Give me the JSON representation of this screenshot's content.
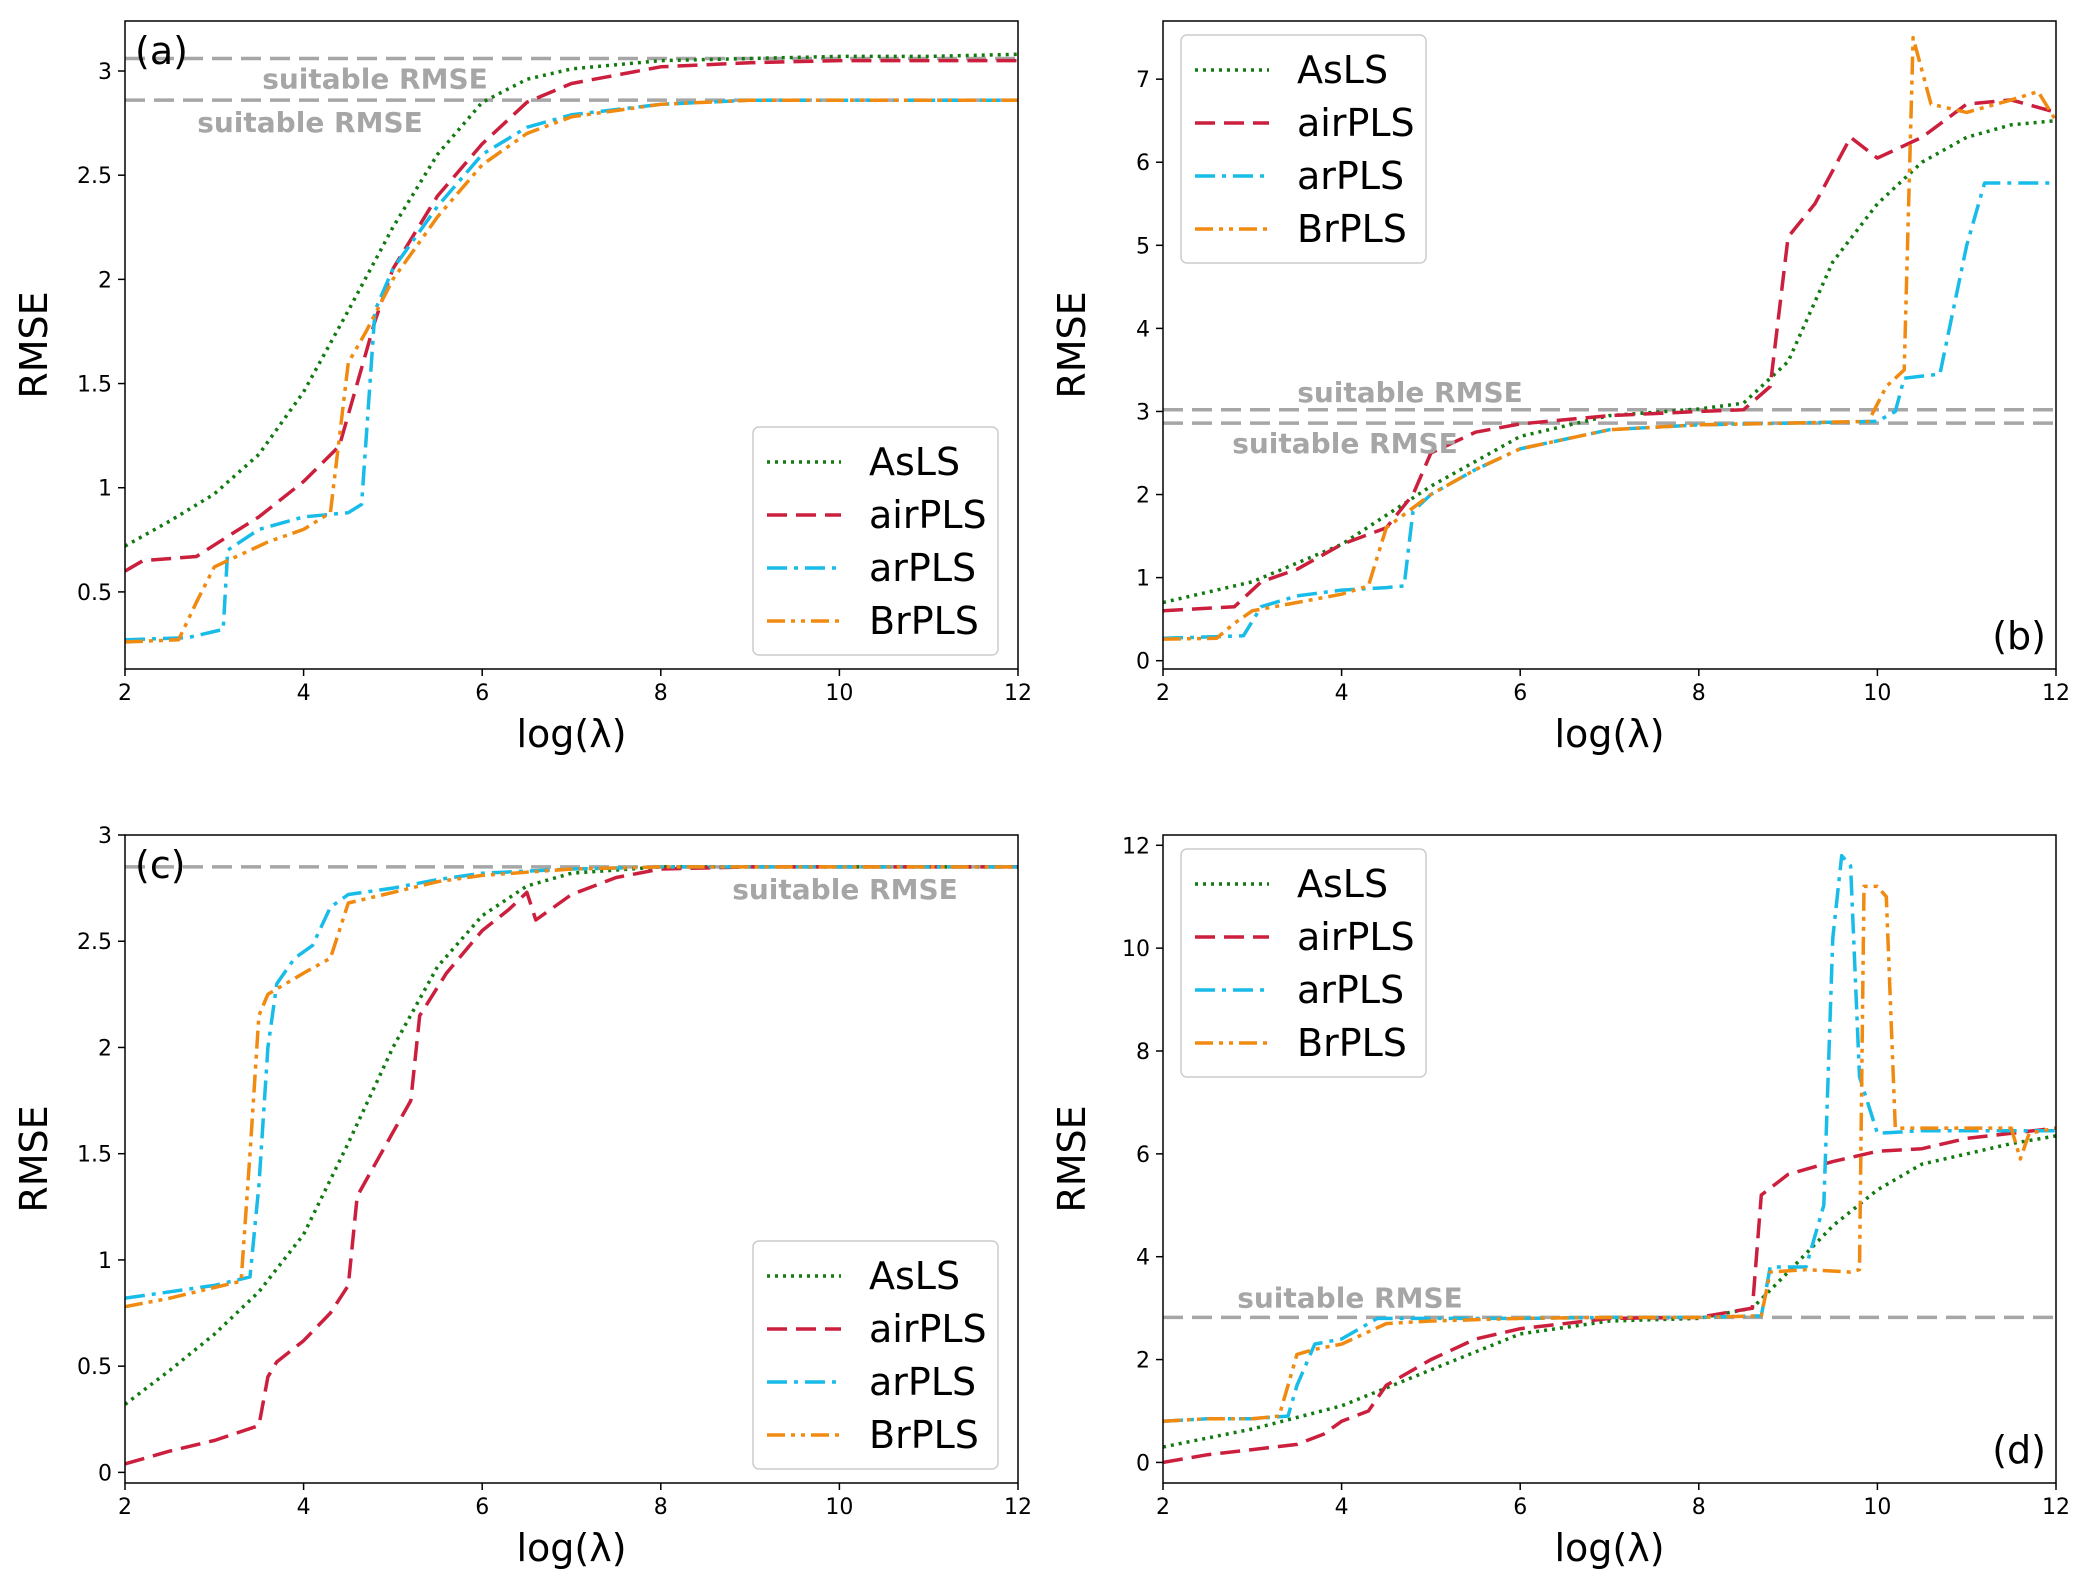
{
  "figure": {
    "layout": "2x2 grid"
  },
  "chart_data": [
    {
      "panel": "(a)",
      "type": "line",
      "xlabel": "log(λ)",
      "ylabel": "RMSE",
      "xlim": [
        2,
        12
      ],
      "ylim": [
        0.13,
        3.24
      ],
      "xticks": [
        2,
        4,
        6,
        8,
        10,
        12
      ],
      "yticks": [
        0.5,
        1.0,
        1.5,
        2.0,
        2.5,
        3.0
      ],
      "legend": {
        "placement": "lower-right"
      },
      "panel_label_placement": "top-left",
      "reference_lines": [
        {
          "label": "suitable RMSE",
          "y": 3.06
        },
        {
          "label": "suitable RMSE",
          "y": 2.86
        }
      ],
      "series": [
        {
          "name": "AsLS",
          "x": [
            2,
            2.5,
            3,
            3.5,
            4,
            4.5,
            5,
            5.5,
            6,
            6.5,
            7,
            8,
            9,
            10,
            11,
            12
          ],
          "values": [
            0.72,
            0.84,
            0.97,
            1.16,
            1.46,
            1.85,
            2.25,
            2.6,
            2.85,
            2.96,
            3.01,
            3.05,
            3.06,
            3.07,
            3.07,
            3.08
          ]
        },
        {
          "name": "airPLS",
          "x": [
            2,
            2.2,
            2.8,
            3.2,
            3.5,
            4,
            4.4,
            4.6,
            4.8,
            5,
            5.5,
            6,
            6.5,
            7,
            8,
            9,
            10,
            11,
            12
          ],
          "values": [
            0.6,
            0.65,
            0.67,
            0.78,
            0.86,
            1.03,
            1.2,
            1.5,
            1.8,
            2.05,
            2.4,
            2.65,
            2.85,
            2.94,
            3.02,
            3.04,
            3.05,
            3.05,
            3.05
          ]
        },
        {
          "name": "arPLS",
          "x": [
            2,
            2.7,
            3.1,
            3.15,
            3.5,
            4,
            4.5,
            4.65,
            4.8,
            5,
            5.5,
            6,
            6.5,
            7,
            8,
            9,
            10,
            11,
            12
          ],
          "values": [
            0.27,
            0.28,
            0.32,
            0.7,
            0.8,
            0.86,
            0.88,
            0.92,
            1.85,
            2.05,
            2.35,
            2.6,
            2.73,
            2.79,
            2.84,
            2.86,
            2.86,
            2.86,
            2.86
          ]
        },
        {
          "name": "BrPLS",
          "x": [
            2,
            2.6,
            2.8,
            3.0,
            3.3,
            3.6,
            4,
            4.3,
            4.5,
            4.7,
            5,
            5.5,
            6,
            6.5,
            7,
            8,
            9,
            10,
            11,
            12
          ],
          "values": [
            0.26,
            0.27,
            0.45,
            0.62,
            0.68,
            0.74,
            0.8,
            0.88,
            1.6,
            1.75,
            2.0,
            2.3,
            2.55,
            2.7,
            2.78,
            2.84,
            2.86,
            2.86,
            2.86,
            2.86
          ]
        }
      ]
    },
    {
      "panel": "(b)",
      "type": "line",
      "xlabel": "log(λ)",
      "ylabel": "RMSE",
      "xlim": [
        2,
        12
      ],
      "ylim": [
        -0.1,
        7.7
      ],
      "xticks": [
        2,
        4,
        6,
        8,
        10,
        12
      ],
      "yticks": [
        0,
        1,
        2,
        3,
        4,
        5,
        6,
        7
      ],
      "legend": {
        "placement": "top-left"
      },
      "panel_label_placement": "bottom-right",
      "reference_lines": [
        {
          "label": "suitable RMSE",
          "y": 3.02
        },
        {
          "label": "suitable RMSE",
          "y": 2.86
        }
      ],
      "series": [
        {
          "name": "AsLS",
          "x": [
            2,
            3,
            4,
            5,
            6,
            7,
            8,
            8.5,
            9,
            9.5,
            10,
            10.5,
            11,
            11.5,
            12
          ],
          "values": [
            0.7,
            0.95,
            1.4,
            2.1,
            2.7,
            2.95,
            3.03,
            3.1,
            3.6,
            4.8,
            5.5,
            6.0,
            6.3,
            6.45,
            6.5
          ]
        },
        {
          "name": "airPLS",
          "x": [
            2,
            2.8,
            3.1,
            3.5,
            4,
            4.5,
            4.8,
            5.0,
            5.5,
            6,
            7,
            8,
            8.5,
            8.8,
            9.0,
            9.3,
            9.7,
            10.0,
            10.5,
            11,
            11.5,
            12
          ],
          "values": [
            0.6,
            0.65,
            0.95,
            1.1,
            1.4,
            1.6,
            2.0,
            2.5,
            2.75,
            2.85,
            2.95,
            3.0,
            3.02,
            3.3,
            5.1,
            5.5,
            6.3,
            6.05,
            6.3,
            6.7,
            6.75,
            6.6
          ]
        },
        {
          "name": "arPLS",
          "x": [
            2,
            2.9,
            3.1,
            3.5,
            4,
            4.5,
            4.7,
            4.8,
            5,
            5.5,
            6,
            7,
            8,
            9,
            10,
            10.2,
            10.3,
            10.7,
            11.0,
            11.2,
            12
          ],
          "values": [
            0.27,
            0.3,
            0.65,
            0.78,
            0.85,
            0.88,
            0.9,
            1.8,
            2.0,
            2.3,
            2.55,
            2.78,
            2.84,
            2.86,
            2.88,
            3.0,
            3.4,
            3.45,
            5.0,
            5.75,
            5.75
          ]
        },
        {
          "name": "BrPLS",
          "x": [
            2,
            2.6,
            2.8,
            3.0,
            3.5,
            4,
            4.3,
            4.5,
            5,
            5.5,
            6,
            7,
            8,
            9,
            9.9,
            10.1,
            10.3,
            10.4,
            10.6,
            11,
            11.5,
            11.8,
            12
          ],
          "values": [
            0.26,
            0.27,
            0.45,
            0.6,
            0.7,
            0.8,
            0.9,
            1.6,
            2.0,
            2.3,
            2.55,
            2.78,
            2.84,
            2.86,
            2.88,
            3.3,
            3.5,
            7.5,
            6.7,
            6.6,
            6.75,
            6.85,
            6.5
          ]
        }
      ]
    },
    {
      "panel": "(c)",
      "type": "line",
      "xlabel": "log(λ)",
      "ylabel": "RMSE",
      "xlim": [
        2,
        12
      ],
      "ylim": [
        -0.05,
        3.0
      ],
      "xticks": [
        2,
        4,
        6,
        8,
        10,
        12
      ],
      "yticks": [
        0.0,
        0.5,
        1.0,
        1.5,
        2.0,
        2.5,
        3.0
      ],
      "legend": {
        "placement": "lower-right"
      },
      "panel_label_placement": "top-left",
      "reference_lines": [
        {
          "label": "suitable RMSE",
          "y": 2.85
        }
      ],
      "series": [
        {
          "name": "AsLS",
          "x": [
            2,
            2.5,
            3,
            3.5,
            4,
            4.5,
            5,
            5.5,
            6,
            6.5,
            7,
            8,
            9,
            10,
            11,
            12
          ],
          "values": [
            0.32,
            0.48,
            0.65,
            0.85,
            1.12,
            1.55,
            2.0,
            2.38,
            2.62,
            2.76,
            2.82,
            2.85,
            2.85,
            2.85,
            2.85,
            2.85
          ]
        },
        {
          "name": "airPLS",
          "x": [
            2,
            2.5,
            3,
            3.5,
            3.6,
            3.7,
            4,
            4.3,
            4.5,
            4.6,
            4.8,
            5.0,
            5.2,
            5.3,
            5.6,
            6,
            6.3,
            6.5,
            6.6,
            7,
            7.5,
            8,
            9,
            10,
            11,
            12
          ],
          "values": [
            0.04,
            0.1,
            0.15,
            0.22,
            0.45,
            0.52,
            0.62,
            0.75,
            0.88,
            1.3,
            1.45,
            1.6,
            1.75,
            2.15,
            2.35,
            2.55,
            2.65,
            2.73,
            2.6,
            2.72,
            2.8,
            2.84,
            2.85,
            2.85,
            2.85,
            2.85
          ]
        },
        {
          "name": "arPLS",
          "x": [
            2,
            2.5,
            3,
            3.4,
            3.5,
            3.6,
            3.7,
            3.9,
            4.1,
            4.3,
            4.5,
            5,
            5.5,
            6,
            7,
            8,
            9,
            10,
            11,
            12
          ],
          "values": [
            0.82,
            0.85,
            0.88,
            0.92,
            1.35,
            2.0,
            2.3,
            2.42,
            2.48,
            2.66,
            2.72,
            2.75,
            2.79,
            2.82,
            2.84,
            2.85,
            2.85,
            2.85,
            2.85,
            2.85
          ]
        },
        {
          "name": "BrPLS",
          "x": [
            2,
            2.5,
            3,
            3.3,
            3.4,
            3.5,
            3.6,
            4,
            4.3,
            4.5,
            5,
            5.5,
            6,
            7,
            8,
            9,
            10,
            11,
            12
          ],
          "values": [
            0.78,
            0.82,
            0.87,
            0.9,
            1.5,
            2.15,
            2.25,
            2.35,
            2.42,
            2.68,
            2.73,
            2.78,
            2.81,
            2.84,
            2.85,
            2.85,
            2.85,
            2.85,
            2.85
          ]
        }
      ]
    },
    {
      "panel": "(d)",
      "type": "line",
      "xlabel": "log(λ)",
      "ylabel": "RMSE",
      "xlim": [
        2,
        12
      ],
      "ylim": [
        -0.4,
        12.2
      ],
      "xticks": [
        2,
        4,
        6,
        8,
        10,
        12
      ],
      "yticks": [
        0,
        2,
        4,
        6,
        8,
        10,
        12
      ],
      "legend": {
        "placement": "top-left"
      },
      "panel_label_placement": "bottom-right",
      "reference_lines": [
        {
          "label": "suitable RMSE",
          "y": 2.82
        }
      ],
      "series": [
        {
          "name": "AsLS",
          "x": [
            2,
            3,
            4,
            5,
            6,
            7,
            8,
            8.6,
            9,
            9.5,
            10,
            10.5,
            11,
            11.5,
            12
          ],
          "values": [
            0.3,
            0.65,
            1.1,
            1.8,
            2.5,
            2.75,
            2.8,
            3.0,
            3.7,
            4.6,
            5.3,
            5.8,
            6.0,
            6.2,
            6.35
          ]
        },
        {
          "name": "airPLS",
          "x": [
            2,
            2.5,
            3,
            3.5,
            3.8,
            4,
            4.3,
            4.5,
            5,
            5.5,
            6,
            7,
            8,
            8.6,
            8.7,
            9,
            9.5,
            10,
            10.5,
            11,
            11.5,
            12
          ],
          "values": [
            0.0,
            0.15,
            0.25,
            0.35,
            0.55,
            0.8,
            1.0,
            1.5,
            2.0,
            2.4,
            2.6,
            2.8,
            2.82,
            3.0,
            5.2,
            5.6,
            5.85,
            6.05,
            6.1,
            6.3,
            6.4,
            6.5
          ]
        },
        {
          "name": "arPLS",
          "x": [
            2,
            2.5,
            3,
            3.4,
            3.5,
            3.7,
            4,
            4.4,
            5,
            6,
            7,
            8,
            8.7,
            8.8,
            9.2,
            9.4,
            9.5,
            9.6,
            9.7,
            9.8,
            10,
            10.5,
            11,
            12
          ],
          "values": [
            0.8,
            0.85,
            0.85,
            0.9,
            1.5,
            2.3,
            2.4,
            2.8,
            2.8,
            2.8,
            2.82,
            2.82,
            2.85,
            3.8,
            3.8,
            5.0,
            10.2,
            11.8,
            11.6,
            7.5,
            6.4,
            6.45,
            6.45,
            6.45
          ]
        },
        {
          "name": "BrPLS",
          "x": [
            2,
            2.5,
            3,
            3.3,
            3.5,
            3.7,
            4,
            4.5,
            5,
            6,
            7,
            8,
            8.7,
            8.8,
            9.2,
            9.7,
            9.8,
            9.85,
            10.0,
            10.1,
            10.2,
            10.5,
            11,
            11.5,
            11.6,
            11.7,
            12
          ],
          "values": [
            0.8,
            0.85,
            0.85,
            0.9,
            2.1,
            2.2,
            2.3,
            2.7,
            2.75,
            2.8,
            2.82,
            2.82,
            2.85,
            3.7,
            3.75,
            3.7,
            3.75,
            11.2,
            11.2,
            11.0,
            6.5,
            6.5,
            6.5,
            6.5,
            5.9,
            6.4,
            6.5
          ]
        }
      ]
    }
  ],
  "series_styles": [
    {
      "name": "AsLS",
      "color": "#117a11",
      "dash": "dotted"
    },
    {
      "name": "airPLS",
      "color": "#cc1f3e",
      "dash": "dashed"
    },
    {
      "name": "arPLS",
      "color": "#18bce8",
      "dash": "dashdot"
    },
    {
      "name": "BrPLS",
      "color": "#f08a10",
      "dash": "dashdotdot"
    }
  ],
  "reference_line_color": "#a6a6a6"
}
